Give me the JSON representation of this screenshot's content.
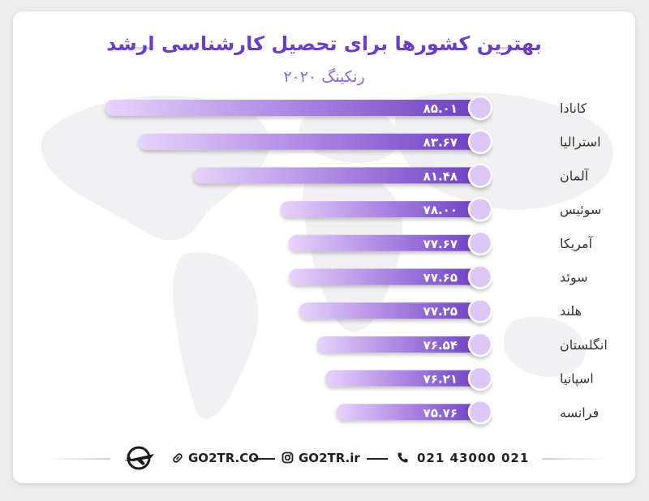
{
  "header": {
    "title": "بهترین کشورها برای تحصیل کارشناسی ارشد",
    "subtitle": "رنکینگ ۲۰۲۰"
  },
  "colors": {
    "accent": "#6c3fc0",
    "bar_dark": "#6d3fc1",
    "bar_light": "#e6cdfa",
    "knob": "#dcc6f6"
  },
  "chart_data": {
    "type": "bar",
    "orientation": "horizontal",
    "title": "بهترین کشورها برای تحصیل کارشناسی ارشد",
    "subtitle": "رنکینگ ۲۰۲۰",
    "categories": [
      "کانادا",
      "استرالیا",
      "آلمان",
      "سوئیس",
      "آمریکا",
      "سوئد",
      "هلند",
      "انگلستان",
      "اسپانیا",
      "فرانسه"
    ],
    "values": [
      85.01,
      83.67,
      81.48,
      78.0,
      77.67,
      77.65,
      77.25,
      76.54,
      76.21,
      75.76
    ],
    "value_labels": [
      "۸۵.۰۱",
      "۸۳.۶۷",
      "۸۱.۴۸",
      "۷۸.۰۰",
      "۷۷.۶۷",
      "۷۷.۶۵",
      "۷۷.۲۵",
      "۷۶.۵۴",
      "۷۶.۲۱",
      "۷۵.۷۶"
    ],
    "xlim": [
      70,
      86
    ],
    "grid": false,
    "legend": "none"
  },
  "footer": {
    "website": "GO2TR.CO",
    "instagram": "GO2TR.ir",
    "phone": "021 43000 021",
    "logo_icon": "plane-logo-icon",
    "link_icon": "link-icon",
    "instagram_icon": "instagram-icon",
    "phone_icon": "phone-icon"
  }
}
